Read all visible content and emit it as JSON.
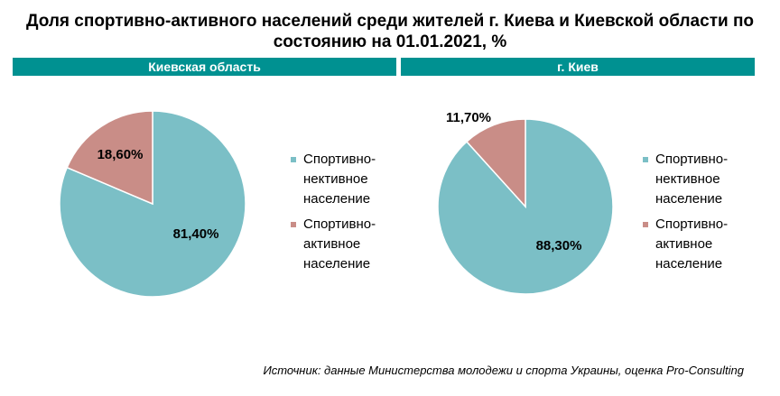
{
  "title": "Доля спортивно-активного населений среди жителей г. Киева и Киевской области по состоянию на 01.01.2021, %",
  "source": "Источник: данные Министерства молодежи и спорта Украины, оценка Pro-Consulting",
  "colors": {
    "band": "#009191",
    "inactive": "#7bbfc6",
    "active": "#c98d87"
  },
  "chart_data": [
    {
      "type": "pie",
      "title": "Киевская  область",
      "slices": [
        {
          "name": "Спортивно-нективное население",
          "value": 81.4,
          "label": "81,40%"
        },
        {
          "name": "Спортивно-активное население",
          "value": 18.6,
          "label": "18,60%"
        }
      ],
      "legend": [
        "Спортивно-нективное население",
        "Спортивно-активное население"
      ]
    },
    {
      "type": "pie",
      "title": "г. Киев",
      "slices": [
        {
          "name": "Спортивно-нективное население",
          "value": 88.3,
          "label": "88,30%"
        },
        {
          "name": "Спортивно-активное население",
          "value": 11.7,
          "label": "11,70%"
        }
      ],
      "legend": [
        "Спортивно-нективное население",
        "Спортивно-активное население"
      ]
    }
  ]
}
